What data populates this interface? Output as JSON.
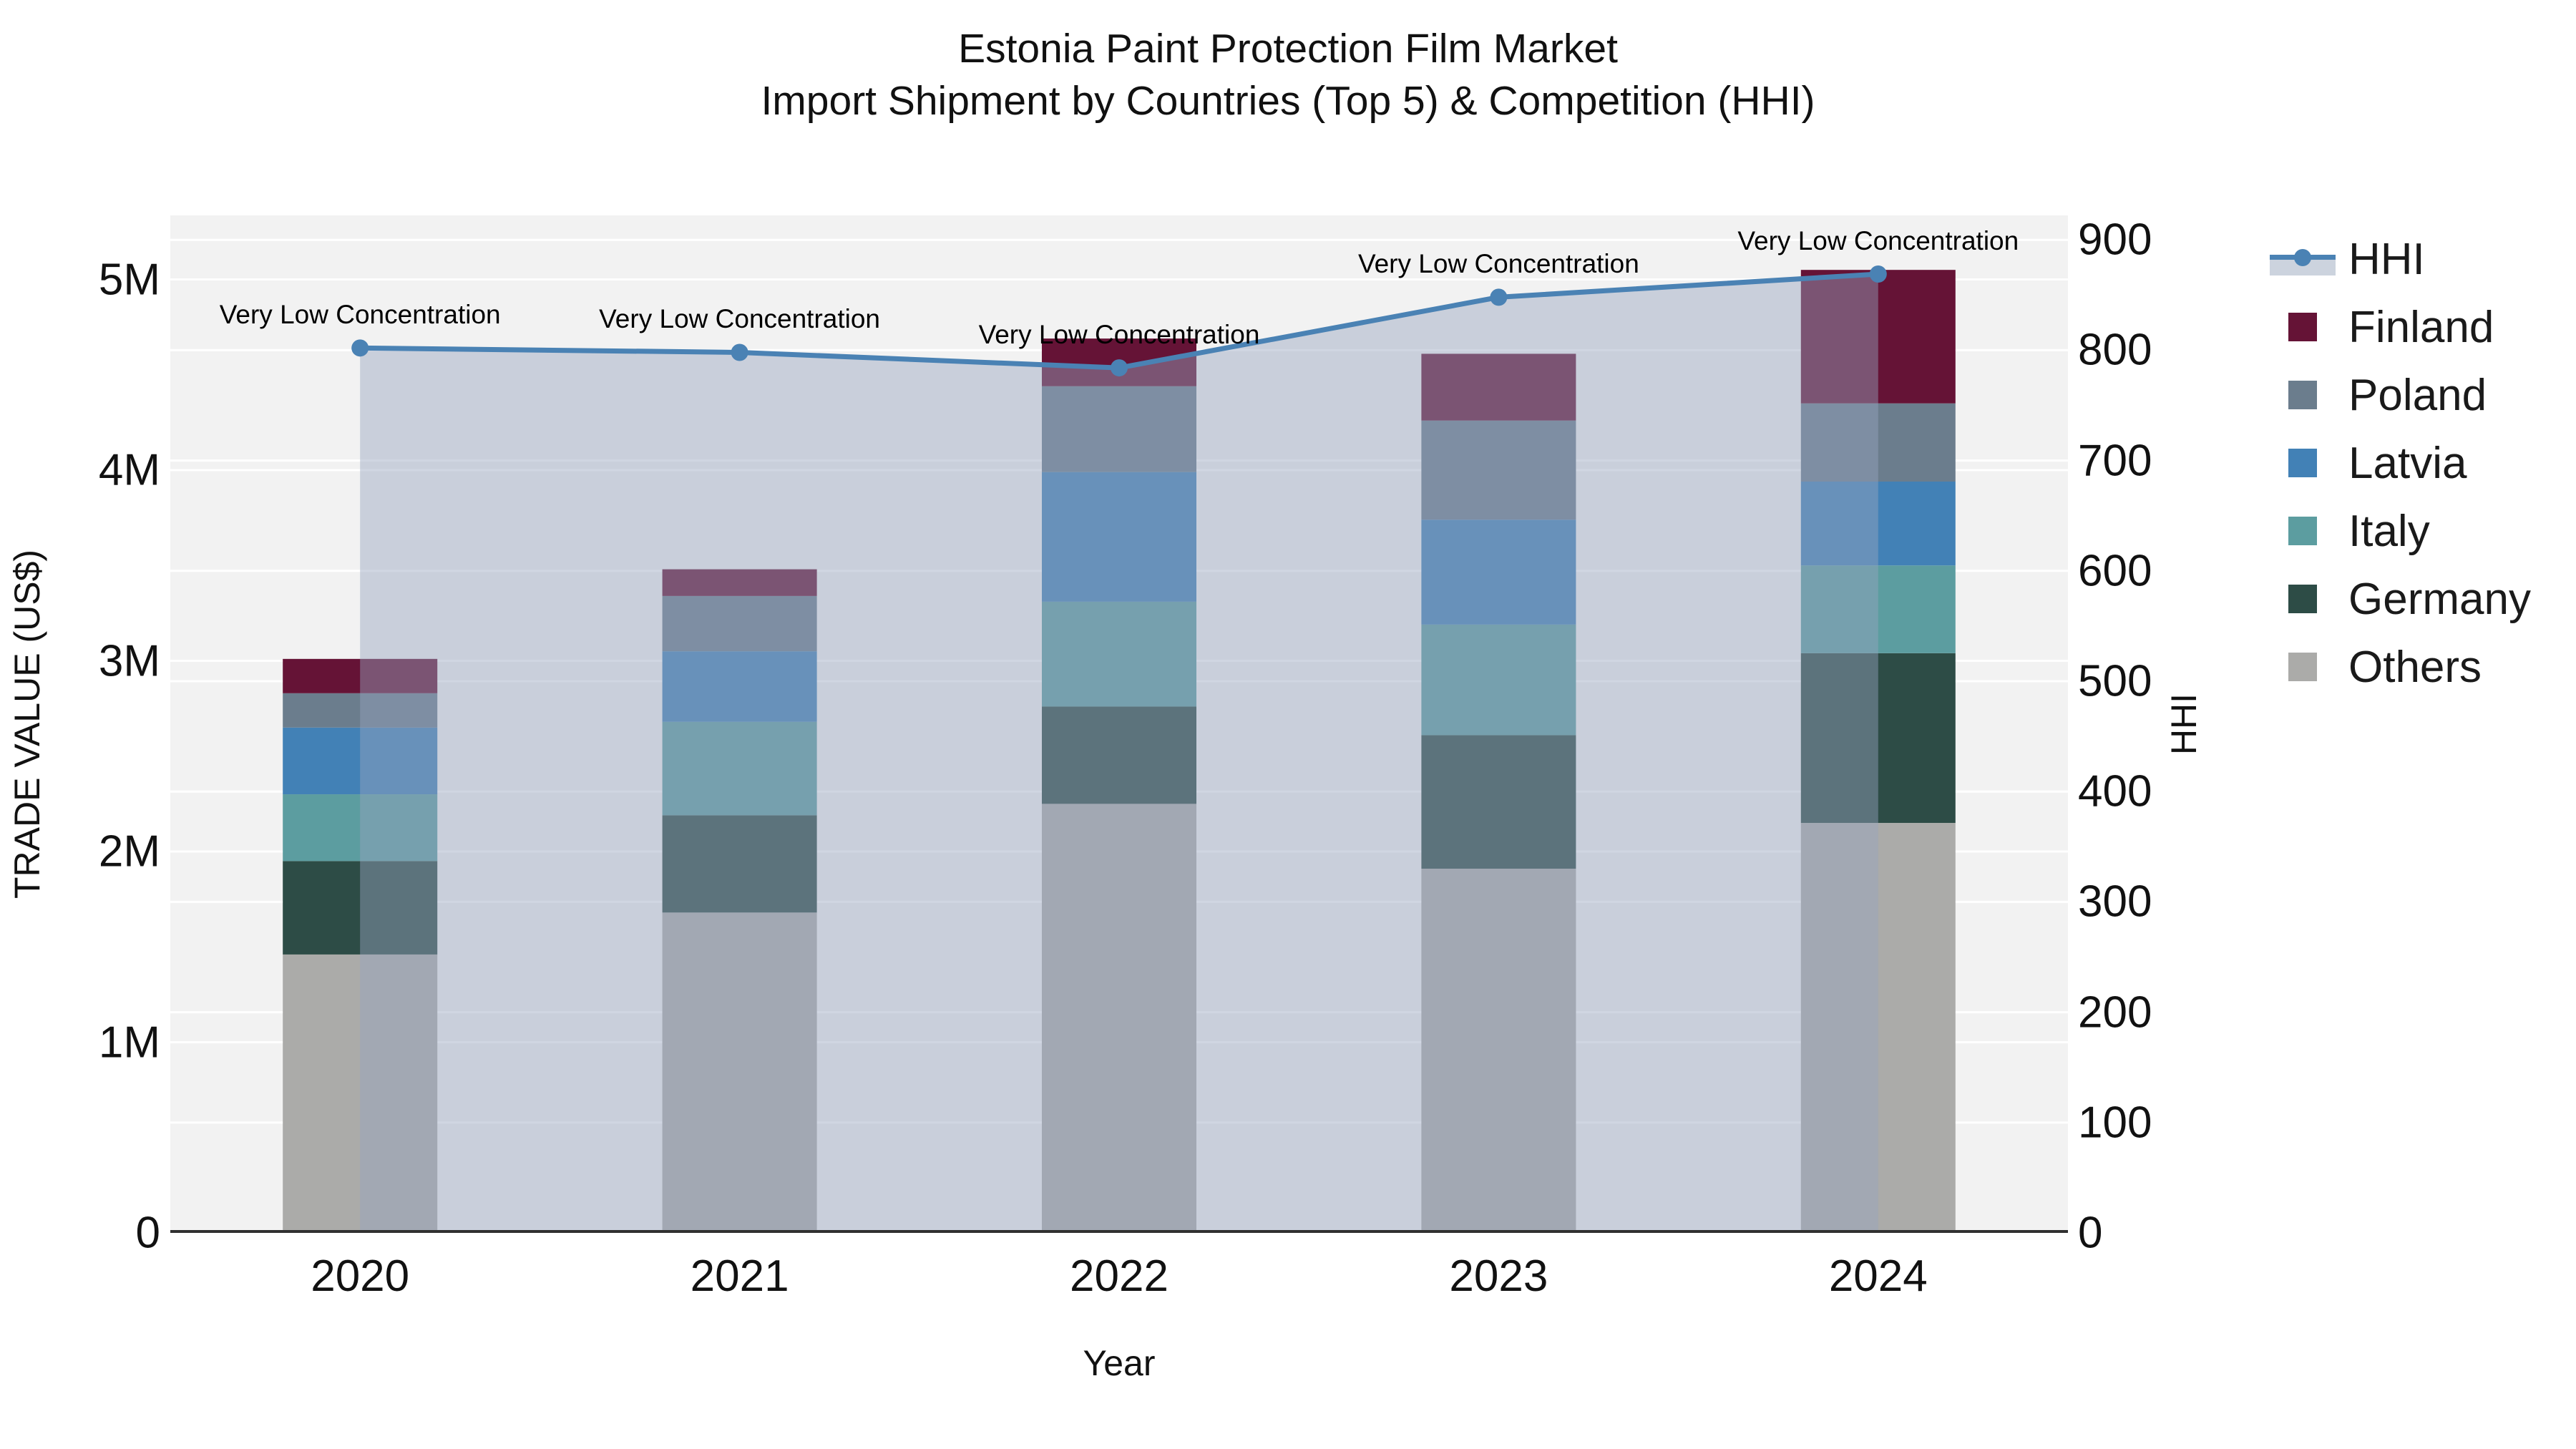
{
  "chart_data": {
    "type": "bar",
    "subtype": "stacked-bar-with-line-overlay",
    "title": {
      "line1": "Estonia Paint Protection Film Market",
      "line2": "Import Shipment by Countries (Top 5) & Competition (HHI)"
    },
    "x_axis": {
      "title": "Year",
      "categories": [
        "2020",
        "2021",
        "2022",
        "2023",
        "2024"
      ]
    },
    "y_left": {
      "title": "TRADE VALUE (US$)",
      "unit": "million US$",
      "range": [
        0,
        5.34
      ],
      "ticks": [
        {
          "value": 0,
          "label": "0"
        },
        {
          "value": 1,
          "label": "1M"
        },
        {
          "value": 2,
          "label": "2M"
        },
        {
          "value": 3,
          "label": "3M"
        },
        {
          "value": 4,
          "label": "4M"
        },
        {
          "value": 5,
          "label": "5M"
        }
      ]
    },
    "y_right": {
      "title": "HHI",
      "range": [
        0,
        922
      ],
      "ticks": [
        {
          "value": 0,
          "label": "0"
        },
        {
          "value": 100,
          "label": "100"
        },
        {
          "value": 200,
          "label": "200"
        },
        {
          "value": 300,
          "label": "300"
        },
        {
          "value": 400,
          "label": "400"
        },
        {
          "value": 500,
          "label": "500"
        },
        {
          "value": 600,
          "label": "600"
        },
        {
          "value": 700,
          "label": "700"
        },
        {
          "value": 800,
          "label": "800"
        },
        {
          "value": 900,
          "label": "900"
        }
      ]
    },
    "stack_order_bottom_to_top": [
      "Others",
      "Germany",
      "Italy",
      "Latvia",
      "Poland",
      "Finland"
    ],
    "series": [
      {
        "name": "Finland",
        "color": "#651336",
        "values_musd": [
          0.18,
          0.14,
          0.25,
          0.35,
          0.7
        ]
      },
      {
        "name": "Poland",
        "color": "#6b7d8d",
        "values_musd": [
          0.18,
          0.29,
          0.45,
          0.52,
          0.41
        ]
      },
      {
        "name": "Latvia",
        "color": "#4281b6",
        "values_musd": [
          0.35,
          0.37,
          0.68,
          0.55,
          0.44
        ]
      },
      {
        "name": "Italy",
        "color": "#5c9da0",
        "values_musd": [
          0.35,
          0.49,
          0.55,
          0.58,
          0.46
        ]
      },
      {
        "name": "Germany",
        "color": "#2d4c46",
        "values_musd": [
          0.49,
          0.51,
          0.51,
          0.7,
          0.89
        ]
      },
      {
        "name": "Others",
        "color": "#ababa9",
        "values_musd": [
          1.46,
          1.68,
          2.25,
          1.91,
          2.15
        ]
      }
    ],
    "hhi_line": {
      "name": "HHI",
      "line_color": "#4a82b4",
      "area_fill_color": "rgba(151,163,191,0.45)",
      "values": [
        802,
        798,
        784,
        848,
        869
      ],
      "annotations": [
        {
          "year": "2020",
          "text": "Very Low Concentration"
        },
        {
          "year": "2021",
          "text": "Very Low Concentration"
        },
        {
          "year": "2022",
          "text": "Very Low Concentration"
        },
        {
          "year": "2023",
          "text": "Very Low Concentration"
        },
        {
          "year": "2024",
          "text": "Very Low Concentration"
        }
      ]
    },
    "legend": {
      "position": "right-top",
      "entries": [
        "HHI",
        "Finland",
        "Poland",
        "Latvia",
        "Italy",
        "Germany",
        "Others"
      ]
    },
    "style": {
      "plot_background": "#f2f2f2",
      "gridline_color": "#ffffff",
      "axis_line_color": "#303030",
      "legend_fill_swatch": "#ccd3de",
      "grid": "on"
    }
  }
}
